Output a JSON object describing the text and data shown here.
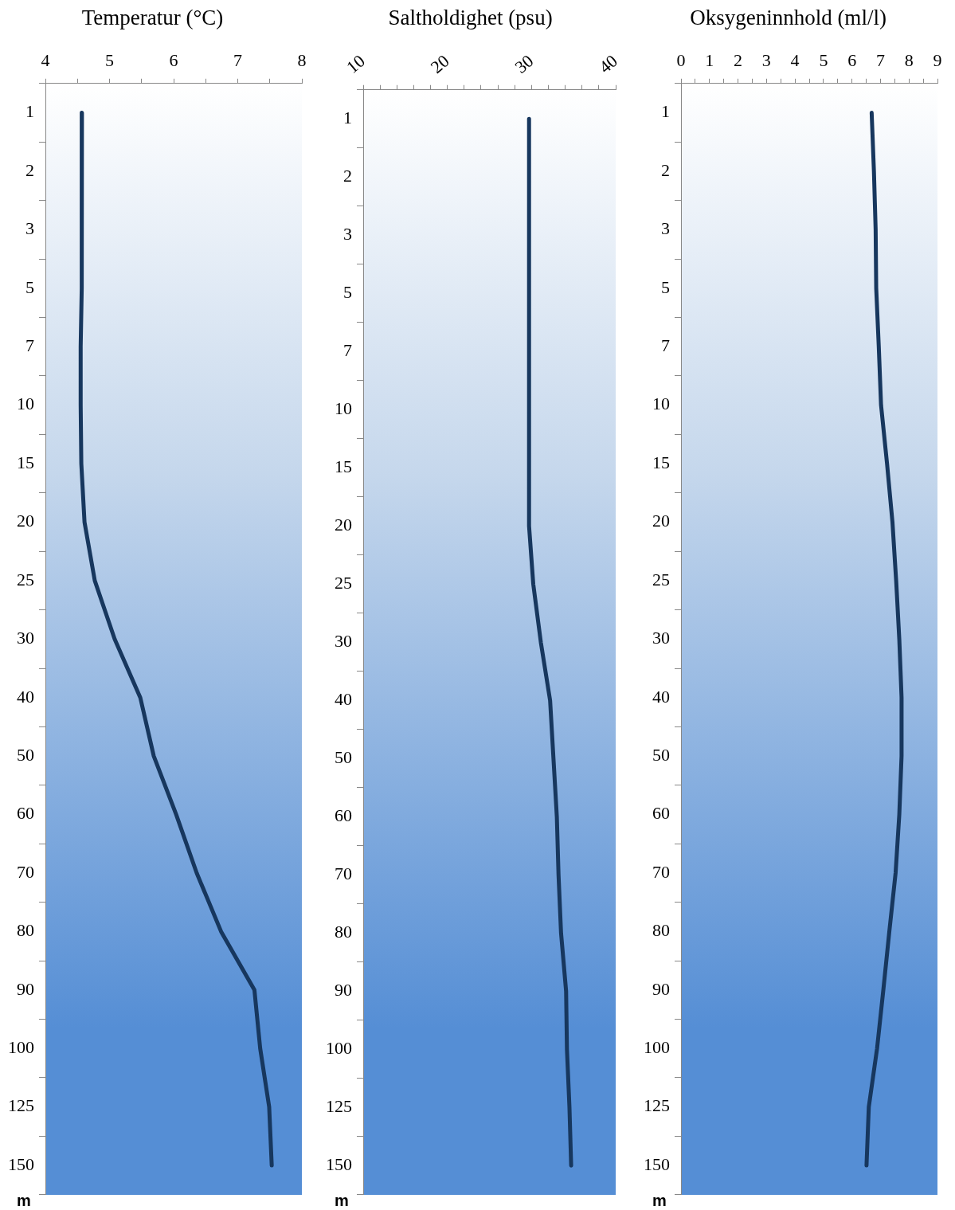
{
  "chart_data": [
    {
      "type": "line",
      "orientation": "horizontal",
      "title": "Temperatur (°C)",
      "ylabel": "m",
      "color": "#17375e",
      "grid": false,
      "categories": [
        "1",
        "2",
        "3",
        "5",
        "7",
        "10",
        "15",
        "20",
        "25",
        "30",
        "40",
        "50",
        "60",
        "70",
        "80",
        "90",
        "100",
        "125",
        "150"
      ],
      "values": [
        4.57,
        4.57,
        4.57,
        4.56,
        4.55,
        4.55,
        4.56,
        4.61,
        4.77,
        5.08,
        5.48,
        5.69,
        6.04,
        6.36,
        6.74,
        7.26,
        7.35,
        7.49,
        7.53
      ],
      "xlim": [
        4,
        8
      ],
      "xticks": [
        4,
        {
          "value": 4.5,
          "label": null
        },
        5,
        {
          "value": 5.5,
          "label": null
        },
        6,
        {
          "value": 6.5,
          "label": null
        },
        7,
        {
          "value": 7.5,
          "label": null
        },
        8
      ]
    },
    {
      "type": "line",
      "orientation": "horizontal",
      "title": "Saltholdighet (psu)",
      "ylabel": "m",
      "color": "#17375e",
      "grid": false,
      "categories": [
        "1",
        "2",
        "3",
        "5",
        "7",
        "10",
        "15",
        "20",
        "25",
        "30",
        "40",
        "50",
        "60",
        "70",
        "80",
        "90",
        "100",
        "125",
        "150"
      ],
      "values": [
        29.7,
        29.7,
        29.7,
        29.7,
        29.7,
        29.7,
        29.7,
        29.7,
        30.2,
        31.1,
        32.2,
        32.6,
        33.0,
        33.2,
        33.5,
        34.1,
        34.2,
        34.5,
        34.7
      ],
      "xlim": [
        10,
        40
      ],
      "xticks": [
        10,
        {
          "value": 12,
          "label": null
        },
        {
          "value": 14,
          "label": null
        },
        {
          "value": 16,
          "label": null
        },
        {
          "value": 18,
          "label": null
        },
        20,
        {
          "value": 22,
          "label": null
        },
        {
          "value": 24,
          "label": null
        },
        {
          "value": 26,
          "label": null
        },
        {
          "value": 28,
          "label": null
        },
        30,
        {
          "value": 32,
          "label": null
        },
        {
          "value": 34,
          "label": null
        },
        {
          "value": 36,
          "label": null
        },
        {
          "value": 38,
          "label": null
        },
        40
      ]
    },
    {
      "type": "line",
      "orientation": "horizontal",
      "title": "Oksygeninnhold (ml/l)",
      "ylabel": "m",
      "color": "#17375e",
      "grid": false,
      "categories": [
        "1",
        "2",
        "3",
        "5",
        "7",
        "10",
        "15",
        "20",
        "25",
        "30",
        "40",
        "50",
        "60",
        "70",
        "80",
        "90",
        "100",
        "125",
        "150"
      ],
      "values": [
        6.69,
        6.77,
        6.83,
        6.85,
        6.94,
        7.02,
        7.23,
        7.42,
        7.55,
        7.66,
        7.74,
        7.74,
        7.66,
        7.53,
        7.31,
        7.1,
        6.88,
        6.59,
        6.51
      ],
      "xlim": [
        0,
        9
      ],
      "xticks": [
        0,
        {
          "value": 0.5,
          "label": null
        },
        1,
        {
          "value": 1.5,
          "label": null
        },
        2,
        {
          "value": 2.5,
          "label": null
        },
        3,
        {
          "value": 3.5,
          "label": null
        },
        4,
        {
          "value": 4.5,
          "label": null
        },
        5,
        {
          "value": 5.5,
          "label": null
        },
        6,
        {
          "value": 6.5,
          "label": null
        },
        7,
        {
          "value": 7.5,
          "label": null
        },
        8,
        {
          "value": 8.5,
          "label": null
        },
        9
      ]
    }
  ]
}
